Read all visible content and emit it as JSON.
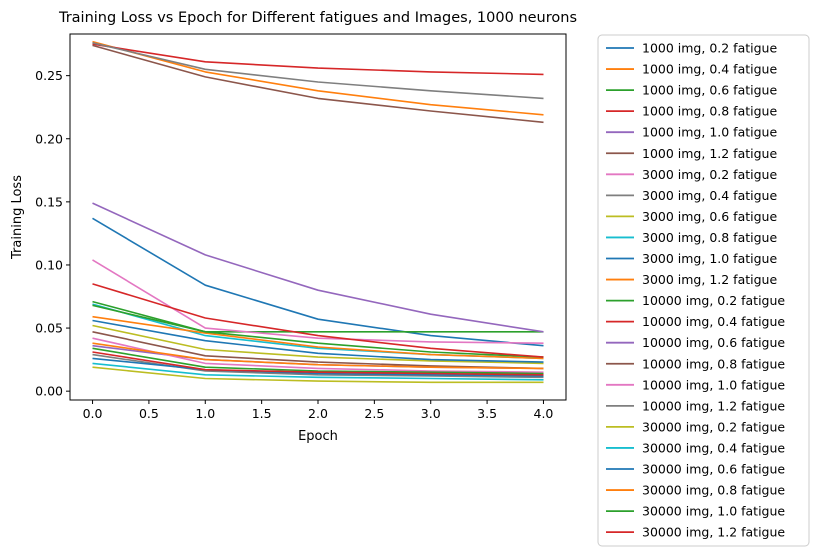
{
  "chart_data": {
    "type": "line",
    "title": "Training Loss vs Epoch for Different fatigues and Images, 1000 neurons",
    "xlabel": "Epoch",
    "ylabel": "Training Loss",
    "xlim": [
      -0.2,
      4.2
    ],
    "ylim": [
      -0.007,
      0.283
    ],
    "xticks": [
      0.0,
      0.5,
      1.0,
      1.5,
      2.0,
      2.5,
      3.0,
      3.5,
      4.0
    ],
    "xtick_labels": [
      "0.0",
      "0.5",
      "1.0",
      "1.5",
      "2.0",
      "2.5",
      "3.0",
      "3.5",
      "4.0"
    ],
    "yticks": [
      0.0,
      0.05,
      0.1,
      0.15,
      0.2,
      0.25
    ],
    "ytick_labels": [
      "0.00",
      "0.05",
      "0.10",
      "0.15",
      "0.20",
      "0.25"
    ],
    "grid": false,
    "legend_position": "outside-right",
    "x": [
      0,
      1,
      2,
      3,
      4
    ],
    "series": [
      {
        "name": "1000 img, 0.2 fatigue",
        "color": "#1f77b4",
        "values": [
          0.137,
          0.084,
          0.057,
          0.044,
          0.036
        ]
      },
      {
        "name": "1000 img, 0.4 fatigue",
        "color": "#ff7f0e",
        "values": [
          0.277,
          0.253,
          0.238,
          0.227,
          0.219
        ]
      },
      {
        "name": "1000 img, 0.6 fatigue",
        "color": "#2ca02c",
        "values": [
          0.071,
          0.047,
          0.047,
          0.047,
          0.047
        ]
      },
      {
        "name": "1000 img, 0.8 fatigue",
        "color": "#d62728",
        "values": [
          0.275,
          0.261,
          0.256,
          0.253,
          0.251
        ]
      },
      {
        "name": "1000 img, 1.0 fatigue",
        "color": "#9467bd",
        "values": [
          0.149,
          0.108,
          0.08,
          0.061,
          0.047
        ]
      },
      {
        "name": "1000 img, 1.2 fatigue",
        "color": "#8c564b",
        "values": [
          0.274,
          0.249,
          0.232,
          0.222,
          0.213
        ]
      },
      {
        "name": "3000 img, 0.2 fatigue",
        "color": "#e377c2",
        "values": [
          0.104,
          0.05,
          0.042,
          0.039,
          0.038
        ]
      },
      {
        "name": "3000 img, 0.4 fatigue",
        "color": "#7f7f7f",
        "values": [
          0.276,
          0.255,
          0.245,
          0.238,
          0.232
        ]
      },
      {
        "name": "3000 img, 0.6 fatigue",
        "color": "#bcbd22",
        "values": [
          0.052,
          0.033,
          0.027,
          0.024,
          0.022
        ]
      },
      {
        "name": "3000 img, 0.8 fatigue",
        "color": "#17becf",
        "values": [
          0.069,
          0.044,
          0.034,
          0.029,
          0.026
        ]
      },
      {
        "name": "3000 img, 1.0 fatigue",
        "color": "#1f77b4",
        "values": [
          0.056,
          0.04,
          0.03,
          0.025,
          0.023
        ]
      },
      {
        "name": "3000 img, 1.2 fatigue",
        "color": "#ff7f0e",
        "values": [
          0.059,
          0.046,
          0.035,
          0.029,
          0.026
        ]
      },
      {
        "name": "10000 img, 0.2 fatigue",
        "color": "#2ca02c",
        "values": [
          0.068,
          0.047,
          0.038,
          0.031,
          0.027
        ]
      },
      {
        "name": "10000 img, 0.4 fatigue",
        "color": "#d62728",
        "values": [
          0.085,
          0.058,
          0.044,
          0.034,
          0.027
        ]
      },
      {
        "name": "10000 img, 0.6 fatigue",
        "color": "#9467bd",
        "values": [
          0.036,
          0.025,
          0.021,
          0.019,
          0.018
        ]
      },
      {
        "name": "10000 img, 0.8 fatigue",
        "color": "#8c564b",
        "values": [
          0.047,
          0.028,
          0.023,
          0.02,
          0.018
        ]
      },
      {
        "name": "10000 img, 1.0 fatigue",
        "color": "#e377c2",
        "values": [
          0.042,
          0.022,
          0.018,
          0.016,
          0.015
        ]
      },
      {
        "name": "10000 img, 1.2 fatigue",
        "color": "#7f7f7f",
        "values": [
          0.029,
          0.016,
          0.013,
          0.012,
          0.011
        ]
      },
      {
        "name": "30000 img, 0.2 fatigue",
        "color": "#bcbd22",
        "values": [
          0.019,
          0.01,
          0.008,
          0.007,
          0.007
        ]
      },
      {
        "name": "30000 img, 0.4 fatigue",
        "color": "#17becf",
        "values": [
          0.022,
          0.013,
          0.011,
          0.01,
          0.009
        ]
      },
      {
        "name": "30000 img, 0.6 fatigue",
        "color": "#1f77b4",
        "values": [
          0.026,
          0.017,
          0.014,
          0.013,
          0.012
        ]
      },
      {
        "name": "30000 img, 0.8 fatigue",
        "color": "#ff7f0e",
        "values": [
          0.038,
          0.025,
          0.021,
          0.019,
          0.018
        ]
      },
      {
        "name": "30000 img, 1.0 fatigue",
        "color": "#2ca02c",
        "values": [
          0.034,
          0.019,
          0.016,
          0.015,
          0.014
        ]
      },
      {
        "name": "30000 img, 1.2 fatigue",
        "color": "#d62728",
        "values": [
          0.031,
          0.017,
          0.015,
          0.014,
          0.013
        ]
      }
    ]
  }
}
